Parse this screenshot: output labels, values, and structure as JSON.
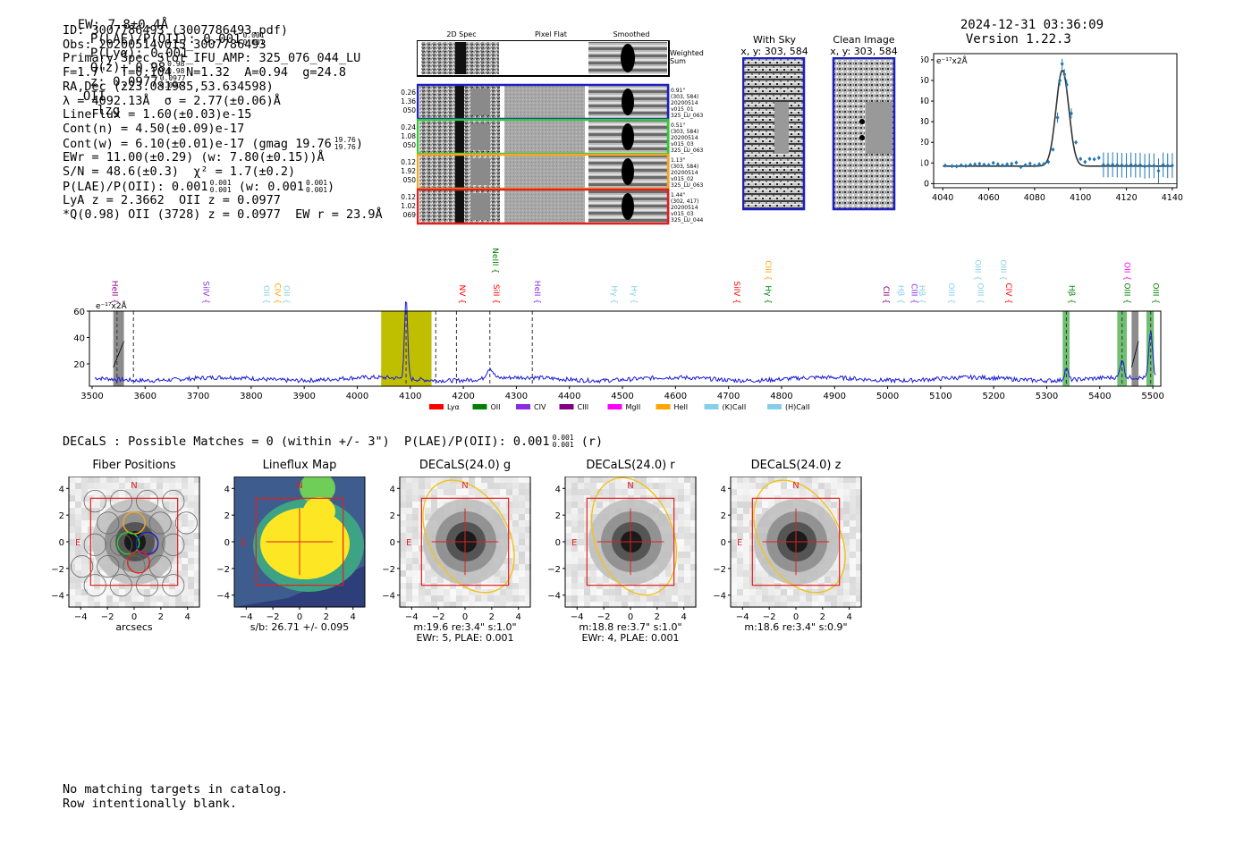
{
  "header": {
    "ew": "EW: 7.8±0.4Å",
    "plae": "P(LAE)/P(OII): 0.001",
    "plae_sup": "0.001",
    "plae_sub": "0.001",
    "plya": "P(Lyα): 0.001",
    "qz": "Q(z): 0.98",
    "qz_sup": "0.98",
    "qz_sub": "0.98",
    "z": "z: 0.0977",
    "z_sup": "0.0977",
    "z_sub": "0.0977",
    "z_line": "OII",
    "flag": "lzg",
    "timestamp": "2024-12-31 03:36:09",
    "version": "Version 1.22.3"
  },
  "info": {
    "lines": [
      "ID: 3007786493 (3007786493.pdf)",
      "Obs: 20200514v015_3007786493",
      "Primary Spec_Slot_IFU_AMP: 325_076_044_LU",
      "F=1.7\"  T=0.104  N=1.32  A=0.94  g=24.8",
      "RA,Dec (223.081985,53.634598)",
      "λ = 4092.13Å  σ = 2.77(±0.06)Å",
      "LineFlux = 1.60(±0.03)e-15",
      "Cont(n) = 4.50(±0.09)e-17",
      "Cont(w) = 6.10(±0.01)e-17 (gmag 19.76",
      "EWr = 11.00(±0.29) (w: 7.80(±0.15))Å",
      "S/N = 48.6(±0.3)  χ² = 1.7(±0.2)",
      "P(LAE)/P(OII): 0.001",
      "LyA z = 2.3662  OII z = 0.0977",
      "*Q(0.98) OII (3728) z = 0.0977  EW r = 23.9Å"
    ],
    "gmag_sup": "19.76",
    "gmag_sub": "19.76",
    "plae_sup": "0.001",
    "plae_sub": "0.001",
    "plae_w": "(w: 0.001",
    "plae_w_sup": "0.001",
    "plae_w_sub": "0.001"
  },
  "cutouts": {
    "col_headers": [
      "2D Spec",
      "Pixel Flat",
      "Smoothed"
    ],
    "weighted_sum": "Weighted Sum",
    "rows": [
      {
        "left": [
          "0.26",
          "1.36",
          "050"
        ],
        "right": [
          "0.91\"",
          "(303, 584)",
          "20200514",
          "v015_01",
          "325_LU_063"
        ],
        "color": "#1f1fbf"
      },
      {
        "left": [
          "0.24",
          "1.08",
          "050"
        ],
        "right": [
          "0.51\"",
          "(303, 584)",
          "20200514",
          "v015_03",
          "325_LU_063"
        ],
        "color": "#2ecc2e"
      },
      {
        "left": [
          "0.12",
          "1.92",
          "050"
        ],
        "right": [
          "1.13\"",
          "(303, 584)",
          "20200514",
          "v015_02",
          "325_LU_063"
        ],
        "color": "#f5a623"
      },
      {
        "left": [
          "0.12",
          "1.02",
          "069"
        ],
        "right": [
          "1.44\"",
          "(302, 417)",
          "20200514",
          "v015_03",
          "325_LU_044"
        ],
        "color": "#e02020"
      }
    ],
    "with_sky_title": "With Sky",
    "with_sky_sub": "x, y: 303, 584",
    "clean_title": "Clean Image",
    "clean_sub": "x, y: 303, 584"
  },
  "zoom_chart": {
    "type": "line",
    "ylabel": "e⁻¹⁷x2Å",
    "xlim": [
      4036,
      4142
    ],
    "ylim": [
      -2,
      63
    ],
    "xticks": [
      4040,
      4060,
      4080,
      4100,
      4120,
      4140
    ],
    "yticks": [
      0,
      10,
      20,
      30,
      40,
      50,
      60
    ],
    "model": {
      "continuum": 8.5,
      "peak": 55,
      "center": 4092.13,
      "sigma": 2.77
    },
    "points_x": [
      4041,
      4044,
      4046,
      4048,
      4050,
      4052,
      4054,
      4056,
      4058,
      4060,
      4062,
      4064,
      4066,
      4068,
      4070,
      4072,
      4074,
      4076,
      4078,
      4080,
      4082,
      4084,
      4086,
      4088,
      4090,
      4091,
      4092,
      4093,
      4094,
      4096,
      4098,
      4100,
      4102,
      4104,
      4106,
      4108,
      4110,
      4112,
      4114,
      4116,
      4118,
      4120,
      4122,
      4124,
      4126,
      4128,
      4130,
      4132,
      4134,
      4136,
      4138,
      4140
    ],
    "points_y": [
      8.8,
      8.5,
      8.4,
      8.9,
      8.6,
      9.1,
      9.3,
      9.6,
      9.2,
      9.0,
      10.0,
      9.4,
      8.9,
      9.3,
      9.6,
      10.2,
      8.1,
      9.0,
      9.7,
      8.8,
      9.4,
      9.5,
      10.5,
      16.5,
      32,
      50,
      58,
      53,
      48,
      34,
      20,
      12,
      10.5,
      12,
      11.8,
      12.5,
      9.1,
      9.0,
      9.2,
      9.0,
      8.9,
      8.8,
      9.1,
      8.9,
      9.0,
      8.4,
      8.7,
      8.7,
      6.2,
      9.1,
      8.7,
      8.8
    ],
    "error_bars_from": 4110
  },
  "spectrum": {
    "type": "line",
    "ylabel": "e⁻¹⁷x2Å",
    "xlim": [
      3495,
      5515
    ],
    "ylim": [
      3,
      60
    ],
    "xticks": [
      3500,
      3600,
      3700,
      3800,
      3900,
      4000,
      4100,
      4200,
      4300,
      4400,
      4500,
      4600,
      4700,
      4800,
      4900,
      5000,
      5100,
      5200,
      5300,
      5400,
      5500
    ],
    "yticks": [
      20,
      40,
      60
    ],
    "continuum": 8.5,
    "emission_peaks": [
      {
        "x": 4092,
        "height": 60,
        "width": 3.0
      },
      {
        "x": 4250,
        "height": 8,
        "width": 6
      },
      {
        "x": 5337,
        "height": 9,
        "width": 3.5
      },
      {
        "x": 5442,
        "height": 14,
        "width": 3.5
      },
      {
        "x": 5496,
        "height": 36,
        "width": 3.5
      }
    ],
    "highlight_band": [
      4045,
      4140
    ],
    "green_bands": [
      [
        5330,
        5343
      ],
      [
        5433,
        5451
      ],
      [
        5488,
        5502
      ]
    ],
    "hatched_bands": [
      [
        3540,
        3560
      ],
      [
        5460,
        5473
      ]
    ],
    "dashed_lines": [
      3578,
      3547,
      4092,
      4148,
      4187,
      4250,
      4330,
      5337,
      5442,
      5496
    ],
    "line_labels": [
      {
        "x": 3533,
        "name": "HeII",
        "color": "#8b008b",
        "row": 3
      },
      {
        "x": 3705,
        "name": "SiIV",
        "color": "#8a2be2",
        "row": 3
      },
      {
        "x": 3819,
        "name": "OII",
        "color": "#87ceeb",
        "row": 3
      },
      {
        "x": 3840,
        "name": "CIV",
        "color": "#ffa500",
        "row": 3
      },
      {
        "x": 3857,
        "name": "OII",
        "color": "#87ceeb",
        "row": 3
      },
      {
        "x": 4188,
        "name": "NV",
        "color": "#ff0000",
        "row": 3
      },
      {
        "x": 4250,
        "name": "NeIII",
        "color": "#008000",
        "row": 1
      },
      {
        "x": 4252,
        "name": "SiII",
        "color": "#ff0000",
        "row": 3
      },
      {
        "x": 4330,
        "name": "HeII",
        "color": "#8a2be2",
        "row": 3
      },
      {
        "x": 4475,
        "name": "Hγ",
        "color": "#87ceeb",
        "row": 3
      },
      {
        "x": 4512,
        "name": "Hγ",
        "color": "#87ceeb",
        "row": 3
      },
      {
        "x": 4706,
        "name": "SiIV",
        "color": "#ff0000",
        "row": 3
      },
      {
        "x": 4765,
        "name": "CIII",
        "color": "#ffa500",
        "row": 2
      },
      {
        "x": 4765,
        "name": "Hγ",
        "color": "#008000",
        "row": 3
      },
      {
        "x": 4987,
        "name": "CII",
        "color": "#800080",
        "row": 3
      },
      {
        "x": 5015,
        "name": "Hβ",
        "color": "#87ceeb",
        "row": 3
      },
      {
        "x": 5040,
        "name": "CIII",
        "color": "#8a2be2",
        "row": 3
      },
      {
        "x": 5055,
        "name": "Hβ",
        "color": "#87ceeb",
        "row": 3
      },
      {
        "x": 5110,
        "name": "OIII",
        "color": "#87ceeb",
        "row": 3
      },
      {
        "x": 5160,
        "name": "OIII",
        "color": "#87ceeb",
        "row": 2
      },
      {
        "x": 5165,
        "name": "OIII",
        "color": "#87ceeb",
        "row": 3
      },
      {
        "x": 5208,
        "name": "OIII",
        "color": "#87ceeb",
        "row": 2
      },
      {
        "x": 5218,
        "name": "CIV",
        "color": "#ff0000",
        "row": 3
      },
      {
        "x": 5337,
        "name": "Hβ",
        "color": "#008000",
        "row": 3
      },
      {
        "x": 5442,
        "name": "OII",
        "color": "#ff00ff",
        "row": 2
      },
      {
        "x": 5442,
        "name": "OIII",
        "color": "#008000",
        "row": 3
      },
      {
        "x": 5496,
        "name": "OIII",
        "color": "#008000",
        "row": 3
      }
    ],
    "legend": [
      {
        "label": "Lyα",
        "color": "#ff0000"
      },
      {
        "label": "OII",
        "color": "#008000"
      },
      {
        "label": "CIV",
        "color": "#8a2be2"
      },
      {
        "label": "CIII",
        "color": "#800080"
      },
      {
        "label": "MgII",
        "color": "#ff00ff"
      },
      {
        "label": "HeII",
        "color": "#ffa500"
      },
      {
        "label": "(K)CaII",
        "color": "#87ceeb"
      },
      {
        "label": "(H)CaII",
        "color": "#87ceeb"
      }
    ]
  },
  "decals": {
    "headline": "DECaLS : Possible Matches = 0 (within +/- 3\")  P(LAE)/P(OII): 0.001",
    "headline_sup": "0.001",
    "headline_sub": "0.001",
    "headline_tail": "(r)",
    "panels": [
      {
        "title": "Fiber Positions",
        "caption1": "arcsecs",
        "caption2": ""
      },
      {
        "title": "Lineflux Map",
        "caption1": "s/b: 26.71 +/- 0.095",
        "caption2": ""
      },
      {
        "title": "DECaLS(24.0) g",
        "caption1": "m:19.6  re:3.4\"  s:1.0\"",
        "caption2": "EWr: 5, PLAE: 0.001"
      },
      {
        "title": "DECaLS(24.0) r",
        "caption1": "m:18.8  re:3.7\"  s:1.0\"",
        "caption2": "EWr: 4, PLAE: 0.001"
      },
      {
        "title": "DECaLS(24.0) z",
        "caption1": "m:18.6  re:3.4\"  s:0.9\"",
        "caption2": ""
      }
    ],
    "axis_ticks": [
      "-4",
      "-2",
      "0",
      "2",
      "4"
    ],
    "north": "N",
    "east": "E"
  },
  "footer": {
    "line1": "No matching targets in catalog.",
    "line2": "Row intentionally blank."
  }
}
